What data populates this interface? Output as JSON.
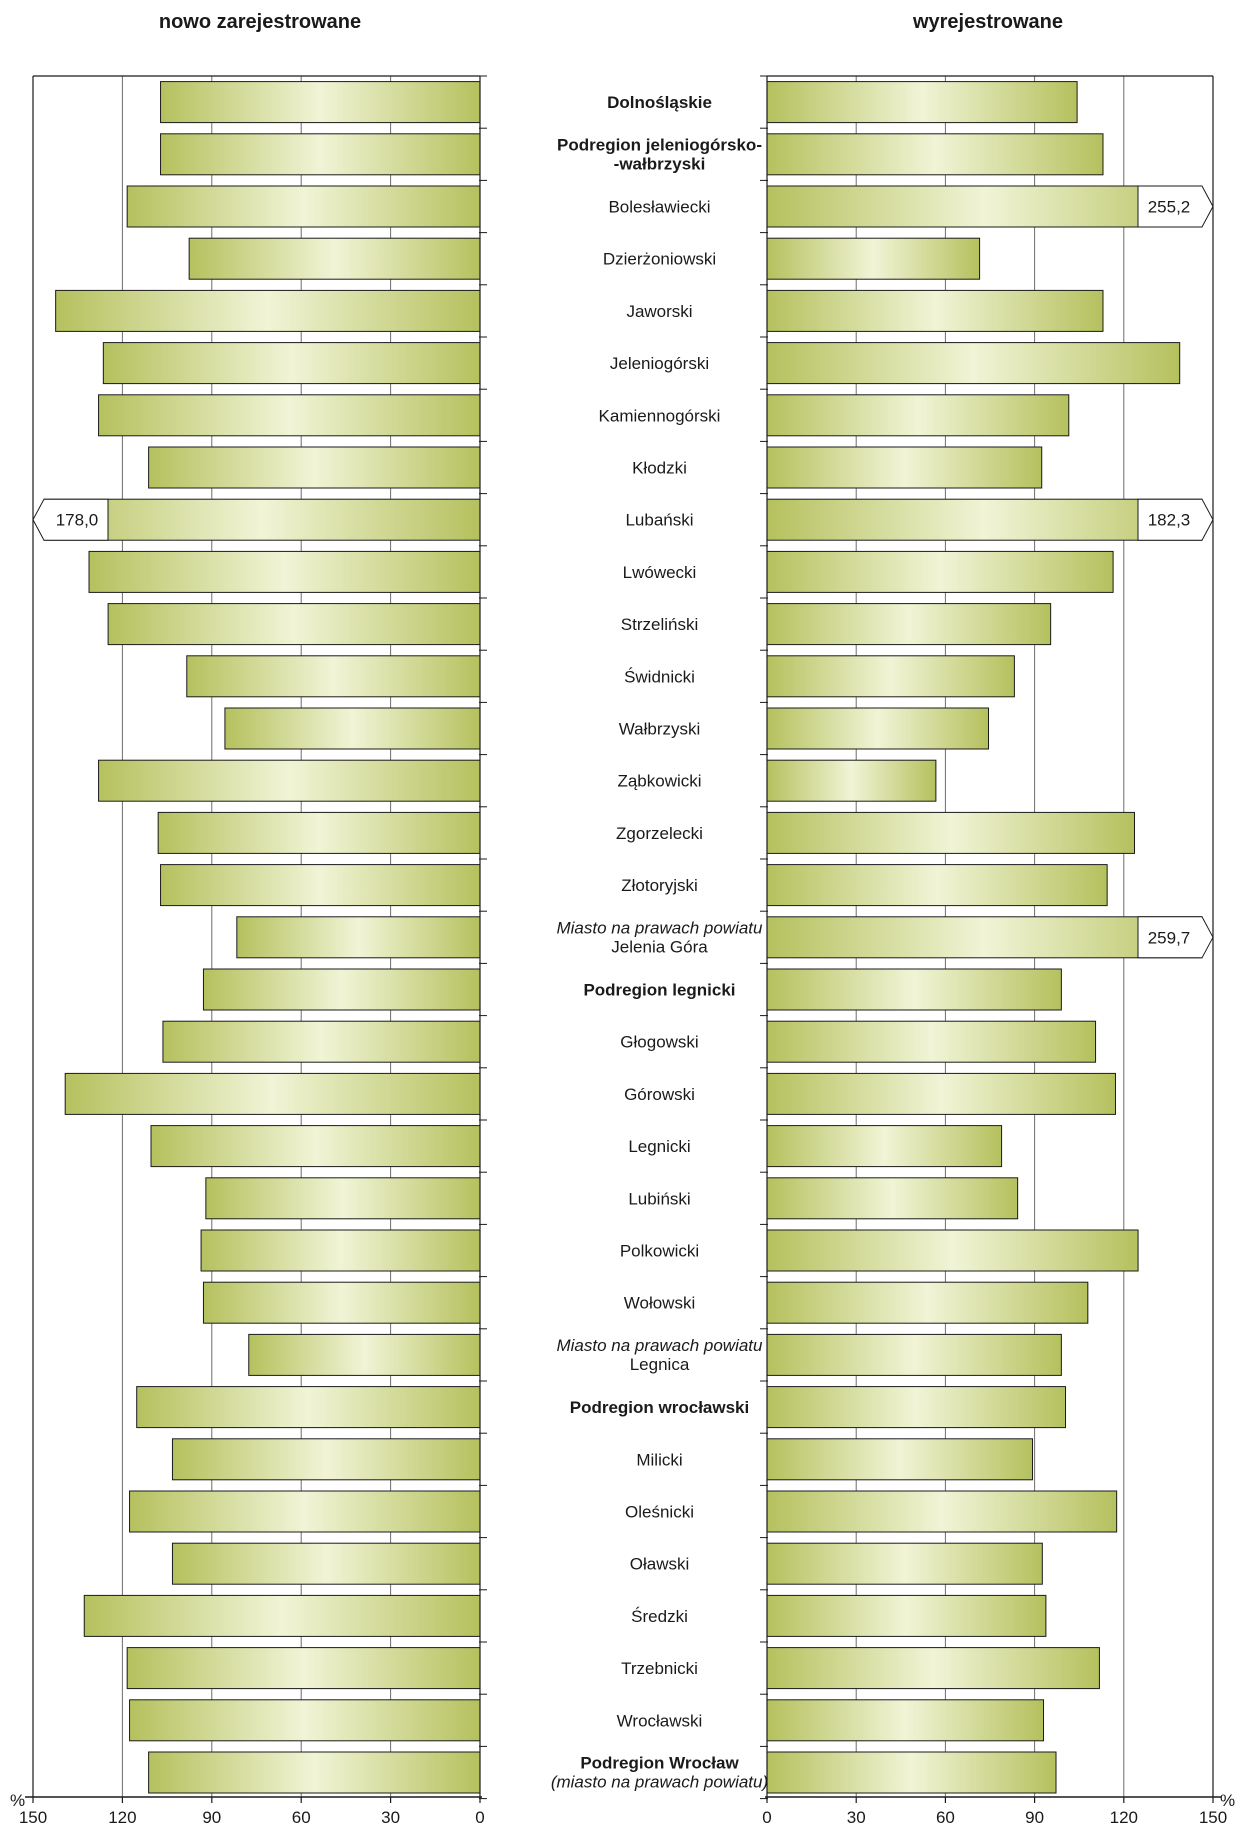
{
  "chart_data": {
    "type": "bar",
    "orientation": "horizontal",
    "layout": "back-to-back",
    "left_title": "nowo zarejestrowane",
    "right_title": "wyrejestrowane",
    "unit": "%",
    "axis_min": 0,
    "axis_max": 150,
    "ticks_left": [
      "150",
      "120",
      "90",
      "60",
      "30",
      "0"
    ],
    "ticks_right": [
      "0",
      "30",
      "60",
      "90",
      "120",
      "150"
    ],
    "tick_values": [
      0,
      30,
      60,
      90,
      120,
      150
    ],
    "gridlines": [
      30,
      60,
      90,
      120
    ],
    "bar_color_dark": "#b5c15e",
    "bar_color_light": "#f1f4d6",
    "categories": [
      {
        "label": "Dolnośląskie",
        "style": "bold",
        "left": 107.2,
        "right": 104.3
      },
      {
        "label": "Podregion jeleniogórsko-",
        "label2": "-wałbrzyski",
        "style": "bold",
        "left": 107.2,
        "right": 113.0
      },
      {
        "label": "Bolesławiecki",
        "style": "normal",
        "left": 118.4,
        "right": 255.2,
        "right_label": "255,2"
      },
      {
        "label": "Dzierżoniowski",
        "style": "normal",
        "left": 97.6,
        "right": 71.5
      },
      {
        "label": "Jaworski",
        "style": "normal",
        "left": 142.4,
        "right": 113.0
      },
      {
        "label": "Jeleniogórski",
        "style": "normal",
        "left": 126.4,
        "right": 138.8
      },
      {
        "label": "Kamiennogórski",
        "style": "normal",
        "left": 128.0,
        "right": 101.5
      },
      {
        "label": "Kłodzki",
        "style": "normal",
        "left": 111.2,
        "right": 92.4
      },
      {
        "label": "Lubański",
        "style": "normal",
        "left": 178.0,
        "left_label": "178,0",
        "right": 182.3,
        "right_label": "182,3"
      },
      {
        "label": "Lwówecki",
        "style": "normal",
        "left": 131.2,
        "right": 116.4
      },
      {
        "label": "Strzeliński",
        "style": "normal",
        "left": 124.8,
        "right": 95.4
      },
      {
        "label": "Świdnicki",
        "style": "normal",
        "left": 98.4,
        "right": 83.2
      },
      {
        "label": "Wałbrzyski",
        "style": "normal",
        "left": 85.6,
        "right": 74.5
      },
      {
        "label": "Ząbkowicki",
        "style": "normal",
        "left": 128.0,
        "right": 56.8
      },
      {
        "label": "Zgorzelecki",
        "style": "normal",
        "left": 108.0,
        "right": 123.6
      },
      {
        "label": "Złotoryjski",
        "style": "normal",
        "left": 107.2,
        "right": 114.4
      },
      {
        "label": "Miasto na prawach powiatu",
        "label2": "Jelenia Góra",
        "style": "city",
        "left": 81.6,
        "right": 259.7,
        "right_label": "259,7"
      },
      {
        "label": "Podregion legnicki",
        "style": "bold",
        "left": 92.8,
        "right": 99.0
      },
      {
        "label": "Głogowski",
        "style": "normal",
        "left": 106.4,
        "right": 110.5
      },
      {
        "label": "Górowski",
        "style": "normal",
        "left": 139.2,
        "right": 117.2
      },
      {
        "label": "Legnicki",
        "style": "normal",
        "left": 110.4,
        "right": 78.9
      },
      {
        "label": "Lubiński",
        "style": "normal",
        "left": 92.0,
        "right": 84.3
      },
      {
        "label": "Polkowicki",
        "style": "normal",
        "left": 93.6,
        "right": 124.8
      },
      {
        "label": "Wołowski",
        "style": "normal",
        "left": 92.8,
        "right": 107.9
      },
      {
        "label": "Miasto na prawach powiatu",
        "label2": "Legnica",
        "style": "city",
        "left": 77.6,
        "right": 99.0
      },
      {
        "label": "Podregion wrocławski",
        "style": "bold",
        "left": 115.2,
        "right": 100.4
      },
      {
        "label": "Milicki",
        "style": "normal",
        "left": 103.2,
        "right": 89.3
      },
      {
        "label": "Oleśnicki",
        "style": "normal",
        "left": 117.6,
        "right": 117.6
      },
      {
        "label": "Oławski",
        "style": "normal",
        "left": 103.2,
        "right": 92.6
      },
      {
        "label": "Średzki",
        "style": "normal",
        "left": 132.8,
        "right": 93.8
      },
      {
        "label": "Trzebnicki",
        "style": "normal",
        "left": 118.4,
        "right": 111.8
      },
      {
        "label": "Wrocławski",
        "style": "normal",
        "left": 117.6,
        "right": 93.0
      },
      {
        "label": "Podregion Wrocław",
        "label2": "(miasto na prawach powiatu)",
        "style": "bold-city",
        "left": 111.2,
        "right": 97.2
      }
    ]
  }
}
